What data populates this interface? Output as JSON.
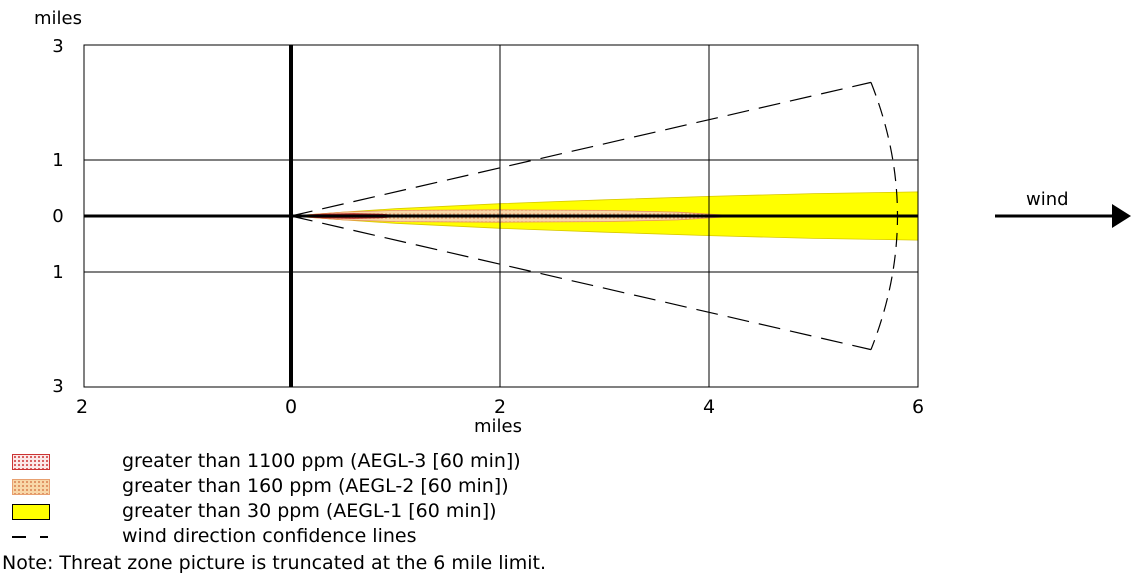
{
  "chart_data": {
    "type": "threat-zone",
    "x_unit_label": "miles",
    "y_unit_label": "miles",
    "xlim": [
      -2,
      6
    ],
    "ylim": [
      -3,
      3
    ],
    "x_ticks": [
      {
        "value": -2,
        "label": "2"
      },
      {
        "value": 0,
        "label": "0"
      },
      {
        "value": 2,
        "label": "2"
      },
      {
        "value": 4,
        "label": "4"
      },
      {
        "value": 6,
        "label": "6"
      }
    ],
    "y_ticks": [
      {
        "value": 3,
        "label": "3"
      },
      {
        "value": 1,
        "label": "1"
      },
      {
        "value": 0,
        "label": "0"
      },
      {
        "value": -1,
        "label": "1"
      },
      {
        "value": -3,
        "label": "3"
      }
    ],
    "grid": true,
    "wind_label": "wind",
    "zones": [
      {
        "key": "aegl1",
        "label": "greater than 30 ppm (AEGL-1 [60 min])",
        "color": "#ffff00",
        "polygon": [
          [
            0,
            0
          ],
          [
            0.5,
            0.07
          ],
          [
            1,
            0.13
          ],
          [
            2,
            0.22
          ],
          [
            3,
            0.29
          ],
          [
            4,
            0.35
          ],
          [
            5,
            0.4
          ],
          [
            6,
            0.43
          ],
          [
            6,
            -0.43
          ],
          [
            5,
            -0.4
          ],
          [
            4,
            -0.35
          ],
          [
            3,
            -0.29
          ],
          [
            2,
            -0.22
          ],
          [
            1,
            -0.13
          ],
          [
            0.5,
            -0.07
          ]
        ]
      },
      {
        "key": "aegl2",
        "label": "greater than 160 ppm (AEGL-2 [60 min])",
        "color": "#f8d7a8",
        "polygon": [
          [
            0,
            0
          ],
          [
            0.5,
            0.07
          ],
          [
            1,
            0.1
          ],
          [
            2,
            0.11
          ],
          [
            3,
            0.1
          ],
          [
            3.7,
            0.07
          ],
          [
            4.3,
            0
          ],
          [
            3.7,
            -0.07
          ],
          [
            3,
            -0.1
          ],
          [
            2,
            -0.11
          ],
          [
            1,
            -0.1
          ],
          [
            0.5,
            -0.07
          ]
        ]
      },
      {
        "key": "aegl3",
        "label": "greater than 1100 ppm (AEGL-3 [60 min])",
        "color": "#cc3333",
        "polygon": [
          [
            0,
            0
          ],
          [
            0.3,
            0.03
          ],
          [
            0.6,
            0.04
          ],
          [
            0.85,
            0.03
          ],
          [
            1.05,
            0
          ],
          [
            0.85,
            -0.03
          ],
          [
            0.6,
            -0.04
          ],
          [
            0.3,
            -0.03
          ]
        ]
      }
    ],
    "confidence_lines": {
      "label": "wind direction confidence lines",
      "upper": [
        [
          0,
          0
        ],
        [
          5.55,
          2.35
        ]
      ],
      "lower": [
        [
          0,
          0
        ],
        [
          5.55,
          -2.35
        ]
      ],
      "arc_radius": 6.03
    },
    "note": "Note: Threat zone picture is truncated at the 6 mile limit."
  }
}
